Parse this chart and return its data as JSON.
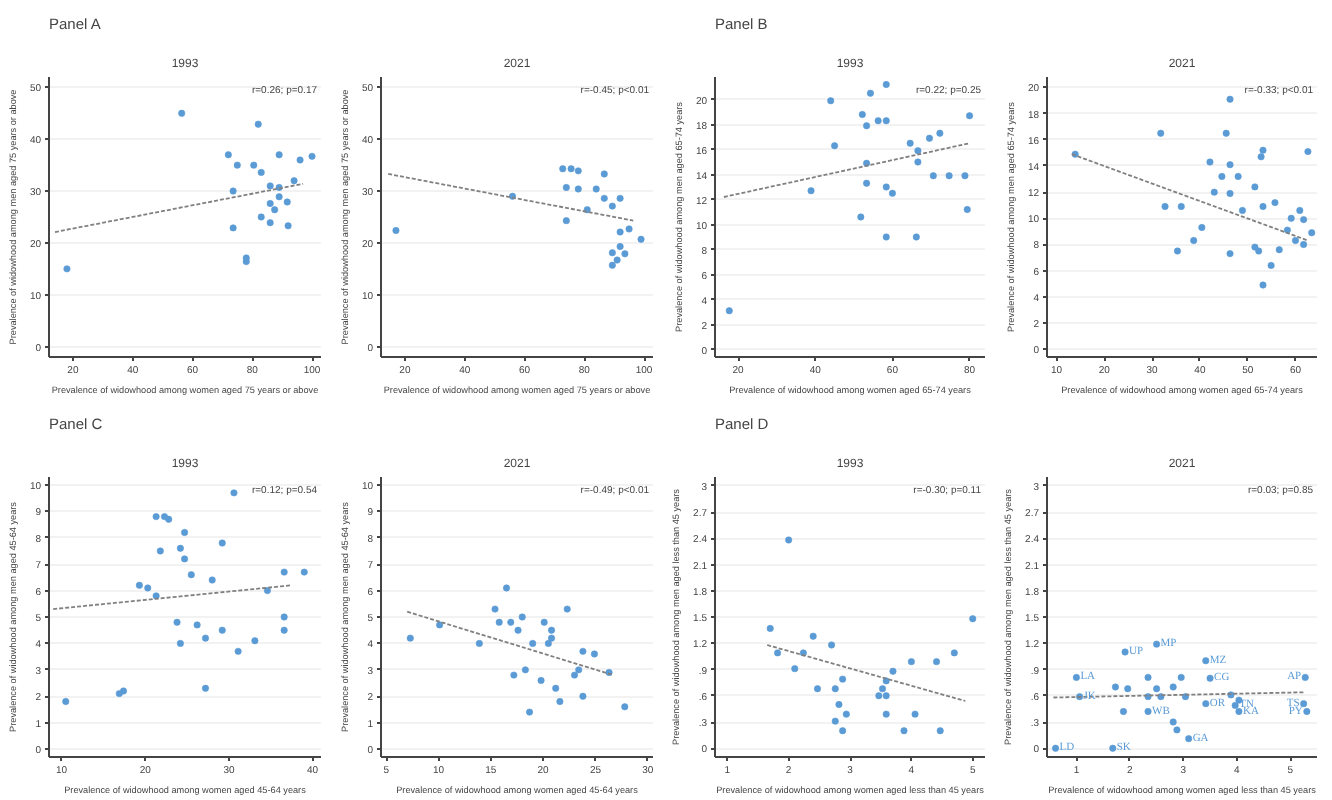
{
  "chart_data": [
    {
      "type": "scatter",
      "subtitle": "Panel A",
      "title": "1993",
      "xlabel": "Prevalence of widowhood among women aged 75 years or above",
      "ylabel": "Prevalence of widowhood among men aged 75 years or above",
      "xlim": [
        12,
        103
      ],
      "ylim": [
        -2,
        52
      ],
      "xticks": [
        20,
        40,
        60,
        80,
        100
      ],
      "yticks": [
        0,
        10,
        20,
        30,
        40,
        50
      ],
      "grid": "y",
      "marker": "circle",
      "annotations": [
        "r=0.26; p=0.17"
      ],
      "series": [
        {
          "type": "scatter",
          "color": "#5b9bd5",
          "x": [
            56.4,
            82,
            72,
            89,
            100,
            96,
            75,
            80.5,
            83,
            73.6,
            86,
            89,
            94,
            91.7,
            86,
            87.5,
            83,
            86,
            92,
            73.6,
            78,
            78,
            18,
            89
          ],
          "values": [
            45,
            42.9,
            37,
            37,
            36.7,
            36,
            35,
            35,
            33.6,
            30,
            31,
            30.7,
            32,
            27.9,
            27.6,
            26.4,
            25,
            23.9,
            23.3,
            22.9,
            17.1,
            16.4,
            15,
            28.9
          ]
        },
        {
          "type": "line",
          "color": "#808080",
          "line_style": "dotted",
          "marker": "none",
          "x": [
            14,
            97
          ],
          "values": [
            22.1,
            31.4
          ]
        }
      ]
    },
    {
      "type": "scatter",
      "title": "2021",
      "xlabel": "Prevalence of widowhood among women aged 75 years or above",
      "ylabel": "Prevalence of widowhood among men aged 75 years or above",
      "xlim": [
        12,
        103
      ],
      "ylim": [
        -2,
        52
      ],
      "xticks": [
        20,
        40,
        60,
        80,
        100
      ],
      "yticks": [
        0,
        10,
        20,
        30,
        40,
        50
      ],
      "grid": "y",
      "marker": "circle",
      "annotations": [
        "r=-0.45; p<0.01"
      ],
      "series": [
        {
          "type": "scatter",
          "color": "#5b9bd5",
          "x": [
            17,
            56,
            72.8,
            75.6,
            78,
            86.7,
            74,
            78,
            84,
            86.7,
            92,
            89.4,
            81,
            74,
            92,
            95,
            99,
            92,
            89.4,
            93.6,
            89.4,
            91
          ],
          "values": [
            22.4,
            29,
            34.3,
            34.3,
            33.9,
            33.3,
            30.7,
            30.4,
            30.4,
            28.6,
            28.6,
            27.1,
            26.4,
            24.3,
            22.1,
            22.7,
            20.7,
            19.3,
            18.1,
            17.9,
            15.7,
            16.7
          ]
        },
        {
          "type": "line",
          "color": "#808080",
          "line_style": "dotted",
          "marker": "none",
          "x": [
            14.4,
            96.4
          ],
          "values": [
            33.3,
            24.3
          ]
        }
      ]
    },
    {
      "type": "scatter",
      "subtitle": "Panel B",
      "title": "1993",
      "xlabel": "Prevalence of widowhood among women aged 65-74 years",
      "ylabel": "Prevalence of widowhood among men aged 65-74 years",
      "xlim": [
        14,
        84
      ],
      "ylim": [
        -0.6,
        21.8
      ],
      "xticks": [
        20,
        40,
        60,
        80
      ],
      "yticks": [
        0,
        2,
        4,
        6,
        8,
        10,
        12,
        14,
        16,
        18,
        20
      ],
      "grid": "y",
      "marker": "circle",
      "annotations": [
        "r=0.22; p=0.25"
      ],
      "series": [
        {
          "type": "scatter",
          "color": "#5b9bd5",
          "x": [
            17.7,
            38.9,
            44,
            45,
            54.3,
            58.4,
            52.2,
            53.3,
            56.3,
            58.4,
            53.3,
            53.3,
            58.4,
            60,
            51.8,
            58.4,
            66.2,
            64.6,
            66.6,
            66.6,
            69.6,
            72.3,
            70.6,
            74.7,
            78.8,
            80,
            79.4
          ],
          "values": [
            3.1,
            12.7,
            19.9,
            16.3,
            20.5,
            21.2,
            18.8,
            17.9,
            18.3,
            18.3,
            14.9,
            13.3,
            13,
            12.5,
            10.6,
            9,
            9,
            16.5,
            15.9,
            15,
            16.9,
            17.3,
            13.9,
            13.9,
            13.9,
            18.7,
            11.2
          ]
        },
        {
          "type": "line",
          "color": "#808080",
          "line_style": "dotted",
          "marker": "none",
          "x": [
            16.3,
            80
          ],
          "values": [
            12.2,
            16.5
          ]
        }
      ]
    },
    {
      "type": "scatter",
      "title": "2021",
      "xlabel": "Prevalence of widowhood among women aged 65-74 years",
      "ylabel": "Prevalence of widowhood among men aged 65-74 years",
      "xlim": [
        8,
        64.5
      ],
      "ylim": [
        -0.6,
        20.8
      ],
      "xticks": [
        10,
        20,
        30,
        40,
        50,
        60
      ],
      "yticks": [
        0,
        2,
        4,
        6,
        8,
        10,
        12,
        14,
        16,
        18,
        20
      ],
      "grid": "y",
      "marker": "circle",
      "annotations": [
        "r=-0.33; p<0.01"
      ],
      "series": [
        {
          "type": "scatter",
          "color": "#5b9bd5",
          "x": [
            13.9,
            31.8,
            46.3,
            45.5,
            53.2,
            52.8,
            62.6,
            42.1,
            46.3,
            44.6,
            48,
            43,
            46.3,
            51.5,
            32.7,
            36.1,
            48.9,
            55.7,
            53.2,
            60.9,
            59.1,
            61.7,
            40.4,
            38.7,
            46.3,
            51.5,
            58.3,
            60,
            63.4,
            35.3,
            52.3,
            54.9,
            53.2,
            56.6,
            61.7
          ],
          "values": [
            14.9,
            16.5,
            19.1,
            16.5,
            15.2,
            14.7,
            15.1,
            14.3,
            14.1,
            13.2,
            13.2,
            12,
            11.9,
            12.4,
            10.9,
            10.9,
            10.6,
            11.2,
            10.9,
            10.6,
            10,
            9.9,
            9.3,
            8.3,
            7.3,
            7.8,
            9.1,
            8.3,
            8.9,
            7.5,
            7.5,
            6.4,
            4.9,
            7.6,
            8
          ]
        },
        {
          "type": "line",
          "color": "#808080",
          "line_style": "dotted",
          "marker": "none",
          "x": [
            13.2,
            62.6
          ],
          "values": [
            14.9,
            8.3
          ]
        }
      ]
    },
    {
      "type": "scatter",
      "subtitle": "Panel C",
      "title": "1993",
      "xlabel": "Prevalence of widowhood among women aged 45-64 years",
      "ylabel": "Prevalence of widowhood among men aged 45-64 years",
      "xlim": [
        8.5,
        41
      ],
      "ylim": [
        -0.3,
        10.3
      ],
      "xticks": [
        10,
        20,
        30,
        40
      ],
      "yticks": [
        0,
        1,
        2,
        3,
        4,
        5,
        6,
        7,
        8,
        9,
        10
      ],
      "grid": "y",
      "marker": "circle",
      "annotations": [
        "r=0.12; p=0.54"
      ],
      "series": [
        {
          "type": "scatter",
          "color": "#5b9bd5",
          "x": [
            10.5,
            16.9,
            17.4,
            27.2,
            30.6,
            22.3,
            22.8,
            21.3,
            24.7,
            24.2,
            24.7,
            29.2,
            21.8,
            25.5,
            28,
            19.3,
            20.3,
            21.3,
            34.6,
            36.6,
            39,
            23.8,
            26.2,
            29.2,
            24.2,
            27.2,
            31.1,
            33.1,
            36.6,
            36.6
          ],
          "values": [
            1.8,
            2.1,
            2.2,
            2.3,
            9.7,
            8.8,
            8.7,
            8.8,
            8.2,
            7.6,
            7.2,
            7.8,
            7.5,
            6.6,
            6.4,
            6.2,
            6.1,
            5.8,
            6,
            6.7,
            6.7,
            4.8,
            4.7,
            4.5,
            4,
            4.2,
            3.7,
            4.1,
            5,
            4.5
          ]
        },
        {
          "type": "line",
          "color": "#808080",
          "line_style": "dotted",
          "marker": "none",
          "x": [
            9,
            37.5
          ],
          "values": [
            5.3,
            6.2
          ]
        }
      ]
    },
    {
      "type": "scatter",
      "title": "2021",
      "xlabel": "Prevalence of widowhood among women aged 45-64 years",
      "ylabel": "Prevalence of widowhood among men aged 45-64 years",
      "xlim": [
        4.5,
        30.5
      ],
      "ylim": [
        -0.3,
        10.3
      ],
      "xticks": [
        5,
        10,
        15,
        20,
        25,
        30
      ],
      "yticks": [
        0,
        1,
        2,
        3,
        4,
        5,
        6,
        7,
        8,
        9,
        10
      ],
      "grid": "y",
      "marker": "circle",
      "annotations": [
        "r=-0.49; p<0.01"
      ],
      "series": [
        {
          "type": "scatter",
          "color": "#5b9bd5",
          "x": [
            7.3,
            10.1,
            13.9,
            16.5,
            15.4,
            15.8,
            16.9,
            18,
            17.6,
            19,
            20.1,
            20.8,
            20.8,
            20.5,
            22.3,
            23.8,
            24.9,
            26.3,
            23,
            17.2,
            18.3,
            19.8,
            21.2,
            21.6,
            18.7,
            27.8,
            23.8,
            23.4
          ],
          "values": [
            4.2,
            4.7,
            4,
            6.1,
            5.3,
            4.8,
            4.8,
            5,
            4.5,
            4,
            4.8,
            4.5,
            4.2,
            4,
            5.3,
            3.7,
            3.6,
            2.9,
            2.8,
            2.8,
            3,
            2.6,
            2.3,
            1.8,
            1.4,
            1.6,
            2,
            3
          ]
        },
        {
          "type": "line",
          "color": "#808080",
          "line_style": "dotted",
          "marker": "none",
          "x": [
            7,
            26.7
          ],
          "values": [
            5.2,
            2.8
          ]
        }
      ]
    },
    {
      "type": "scatter",
      "subtitle": "Panel D",
      "title": "1993",
      "xlabel": "Prevalence of widowhood among women aged less than 45 years",
      "ylabel": "Prevalence of widowhood among men aged less than 45 years",
      "xlim": [
        0.8,
        5.2
      ],
      "ylim": [
        -0.1,
        3.1
      ],
      "xticks": [
        1,
        2,
        3,
        4,
        5
      ],
      "yticks": [
        0,
        {
          "value": 0.3,
          "label": ".3"
        },
        {
          "value": 0.6,
          "label": ".6"
        },
        {
          "value": 0.9,
          "label": ".9"
        },
        1.2,
        1.5,
        1.8,
        2.1,
        2.4,
        2.7,
        3
      ],
      "grid": "y",
      "marker": "circle",
      "annotations": [
        "r=-0.30; p=0.11"
      ],
      "series": [
        {
          "type": "scatter",
          "color": "#5b9bd5",
          "x": [
            2,
            1.7,
            2.4,
            2.7,
            2.24,
            1.82,
            2.1,
            2.88,
            2.47,
            2.76,
            3.7,
            3.59,
            3.53,
            3.59,
            3.47,
            4,
            4.41,
            4.7,
            5,
            2.82,
            2.94,
            3.59,
            4.06,
            2.76,
            2.88,
            3.88,
            4.47
          ],
          "values": [
            2.38,
            1.37,
            1.28,
            1.18,
            1.09,
            1.09,
            0.91,
            0.79,
            0.68,
            0.68,
            0.88,
            0.77,
            0.68,
            0.6,
            0.6,
            0.99,
            0.99,
            1.09,
            1.48,
            0.5,
            0.39,
            0.39,
            0.39,
            0.31,
            0.2,
            0.2,
            0.2
          ]
        },
        {
          "type": "line",
          "color": "#808080",
          "line_style": "dotted",
          "marker": "none",
          "x": [
            1.65,
            4.88
          ],
          "values": [
            1.18,
            0.54
          ]
        }
      ]
    },
    {
      "type": "scatter",
      "title": "2021",
      "xlabel": "Prevalence of widowhood among women aged less than 45 years",
      "ylabel": "Prevalence of widowhood among men aged less than 45 years",
      "xlim": [
        0.45,
        5.5
      ],
      "ylim": [
        -0.1,
        3.1
      ],
      "xticks": [
        1,
        2,
        3,
        4,
        5
      ],
      "yticks": [
        0,
        {
          "value": 0.3,
          "label": ".3"
        },
        {
          "value": 0.6,
          "label": ".6"
        },
        {
          "value": 0.9,
          "label": ".9"
        },
        1.2,
        1.5,
        1.8,
        2.1,
        2.4,
        2.7,
        3
      ],
      "grid": "y",
      "marker": "circle",
      "annotations": [
        "r=0.03; p=0.85"
      ],
      "series": [
        {
          "type": "scatter",
          "color": "#5b9bd5",
          "x": [
            1,
            1.06,
            0.61,
            1.68,
            1.91,
            2.5,
            3.42,
            3.5,
            5.28,
            5.25,
            5.31,
            2.34,
            2.96,
            1.73,
            1.96,
            2.5,
            2.81,
            2.34,
            2.58,
            3.04,
            3.89,
            4.04,
            3.42,
            3.97,
            4.04,
            1.88,
            2.34,
            2.81,
            2.88,
            3.1
          ],
          "values": [
            0.81,
            0.59,
            0,
            0,
            1.1,
            1.19,
            1,
            0.8,
            0.81,
            0.51,
            0.42,
            0.81,
            0.81,
            0.7,
            0.68,
            0.68,
            0.7,
            0.59,
            0.59,
            0.59,
            0.61,
            0.55,
            0.51,
            0.49,
            0.42,
            0.42,
            0.42,
            0.3,
            0.21,
            0.11
          ],
          "value_labels": [
            "LA",
            "JK",
            "LD",
            "SK",
            "UP",
            "MP",
            "MZ",
            "CG",
            "AP",
            "TS",
            "PY",
            null,
            null,
            null,
            null,
            null,
            null,
            null,
            null,
            null,
            null,
            null,
            "OR",
            "TN",
            "KA",
            null,
            "WB",
            null,
            null,
            "GA"
          ]
        },
        {
          "type": "line",
          "color": "#808080",
          "line_style": "dotted",
          "marker": "none",
          "x": [
            0.57,
            5.28
          ],
          "values": [
            0.58,
            0.64
          ]
        }
      ]
    }
  ]
}
